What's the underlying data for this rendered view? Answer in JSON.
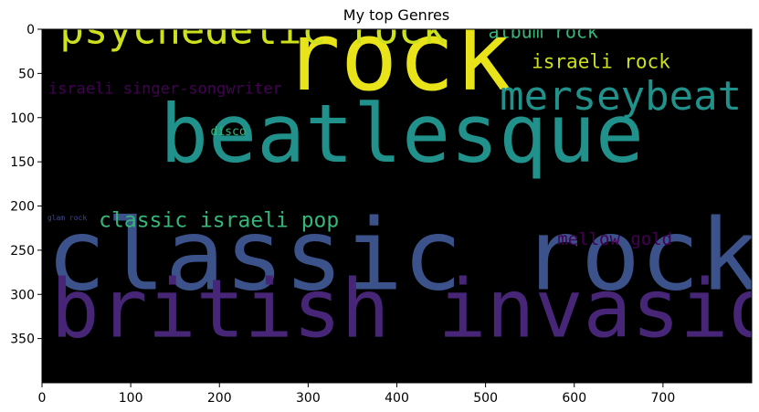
{
  "chart_data": {
    "type": "wordcloud",
    "title": "My top Genres",
    "xlim": [
      0,
      800
    ],
    "ylim": [
      400,
      0
    ],
    "xticks": [
      0,
      100,
      200,
      300,
      400,
      500,
      600,
      700
    ],
    "yticks": [
      0,
      50,
      100,
      150,
      200,
      250,
      300,
      350
    ],
    "grid": false,
    "background": "#000000",
    "words": [
      {
        "text": "classic rock",
        "x": 5,
        "y": 294,
        "size": 108,
        "color": "#3b528b"
      },
      {
        "text": "british invasion",
        "x": 10,
        "y": 348,
        "size": 88,
        "color": "#482677"
      },
      {
        "text": "beatlesque",
        "x": 133,
        "y": 150,
        "size": 88,
        "color": "#21918c"
      },
      {
        "text": "rock",
        "x": 272,
        "y": 68,
        "size": 104,
        "color": "#e8e419"
      },
      {
        "text": "psychedelic rock",
        "x": 20,
        "y": 16,
        "size": 44,
        "color": "#cde11d"
      },
      {
        "text": "merseybeat",
        "x": 516,
        "y": 91,
        "size": 44,
        "color": "#21918c"
      },
      {
        "text": "album rock",
        "x": 503,
        "y": 10,
        "size": 20,
        "color": "#35b779"
      },
      {
        "text": "israeli rock",
        "x": 552,
        "y": 44,
        "size": 21,
        "color": "#cde11d"
      },
      {
        "text": "israeli singer-songwriter",
        "x": 7,
        "y": 73,
        "size": 17,
        "color": "#440154"
      },
      {
        "text": "disco",
        "x": 190,
        "y": 120,
        "size": 13,
        "color": "#35b779"
      },
      {
        "text": "classic israeli pop",
        "x": 64,
        "y": 224,
        "size": 23,
        "color": "#35b779"
      },
      {
        "text": "mellow gold",
        "x": 581,
        "y": 244,
        "size": 19,
        "color": "#440154"
      },
      {
        "text": "glam rock",
        "x": 6,
        "y": 216,
        "size": 8,
        "color": "#3e4a89"
      }
    ]
  }
}
